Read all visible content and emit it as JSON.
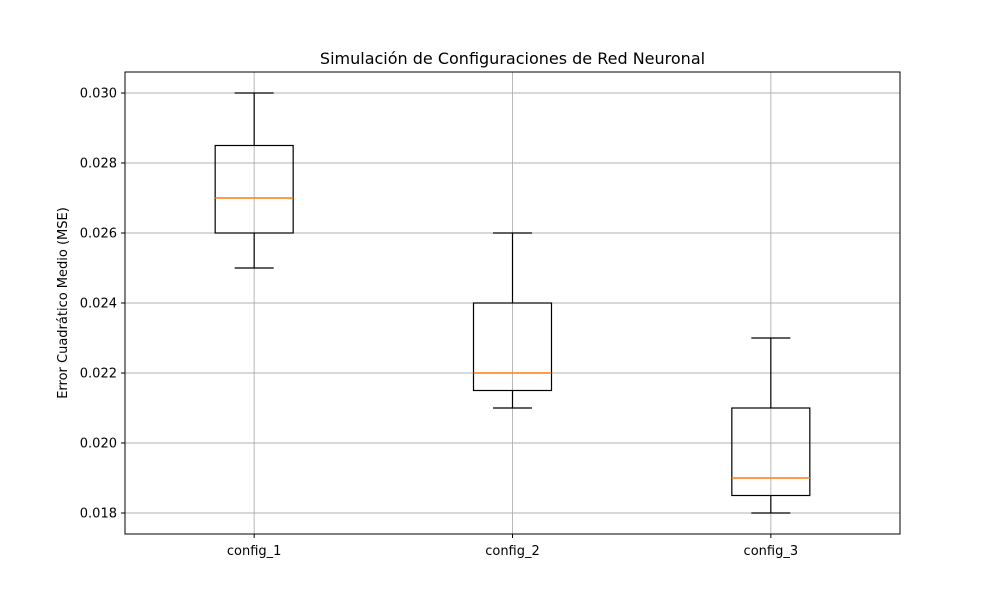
{
  "chart_data": {
    "type": "box",
    "title": "Simulación de Configuraciones de Red Neuronal",
    "xlabel": "",
    "ylabel": "Error Cuadrático Medio (MSE)",
    "categories": [
      "config_1",
      "config_2",
      "config_3"
    ],
    "boxes": [
      {
        "category": "config_1",
        "whisker_low": 0.025,
        "q1": 0.026,
        "median": 0.027,
        "q3": 0.0285,
        "whisker_high": 0.03
      },
      {
        "category": "config_2",
        "whisker_low": 0.021,
        "q1": 0.0215,
        "median": 0.022,
        "q3": 0.024,
        "whisker_high": 0.026
      },
      {
        "category": "config_3",
        "whisker_low": 0.018,
        "q1": 0.0185,
        "median": 0.019,
        "q3": 0.021,
        "whisker_high": 0.023
      }
    ],
    "yticks": [
      "0.018",
      "0.020",
      "0.022",
      "0.024",
      "0.026",
      "0.028",
      "0.030"
    ],
    "ylim": [
      0.0174,
      0.0306
    ],
    "grid": true,
    "legend": "none",
    "colors": {
      "box": "#000000",
      "median": "#ff7f0e",
      "grid": "#b0b0b0"
    }
  }
}
